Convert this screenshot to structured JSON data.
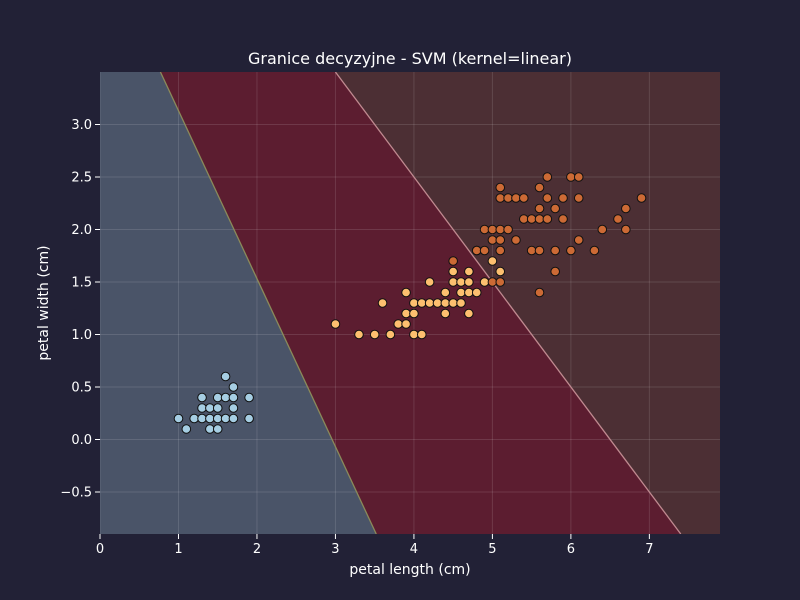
{
  "chart_data": {
    "type": "scatter",
    "title": "Granice decyzyjne - SVM (kernel=linear)",
    "xlabel": "petal length (cm)",
    "ylabel": "petal width (cm)",
    "xlim": [
      0,
      7.9
    ],
    "ylim": [
      -0.9,
      3.5
    ],
    "xticks": [
      0,
      1,
      2,
      3,
      4,
      5,
      6,
      7
    ],
    "xtick_labels": [
      "0",
      "1",
      "2",
      "3",
      "4",
      "5",
      "6",
      "7"
    ],
    "yticks": [
      -0.5,
      0.0,
      0.5,
      1.0,
      1.5,
      2.0,
      2.5,
      3.0
    ],
    "ytick_labels": [
      "−0.5",
      "0.0",
      "0.5",
      "1.0",
      "1.5",
      "2.0",
      "2.5",
      "3.0"
    ],
    "grid": true,
    "regions": [
      {
        "class": 0,
        "color": "#4a5468"
      },
      {
        "class": 1,
        "color": "#5c1d30"
      },
      {
        "class": 2,
        "color": "#4c2f34"
      }
    ],
    "boundaries": [
      {
        "between": [
          0,
          1
        ],
        "points": [
          [
            0.77,
            3.5
          ],
          [
            3.52,
            -0.9
          ]
        ],
        "color": "#8a8a5a"
      },
      {
        "between": [
          1,
          2
        ],
        "points": [
          [
            3.0,
            3.5
          ],
          [
            7.4,
            -0.9
          ]
        ],
        "color": "#c08a90"
      }
    ],
    "series": [
      {
        "color": "#a6cee3",
        "points": [
          [
            1.0,
            0.2
          ],
          [
            1.1,
            0.1
          ],
          [
            1.2,
            0.2
          ],
          [
            1.3,
            0.2
          ],
          [
            1.3,
            0.3
          ],
          [
            1.3,
            0.4
          ],
          [
            1.4,
            0.1
          ],
          [
            1.4,
            0.2
          ],
          [
            1.4,
            0.3
          ],
          [
            1.5,
            0.1
          ],
          [
            1.5,
            0.2
          ],
          [
            1.5,
            0.3
          ],
          [
            1.5,
            0.4
          ],
          [
            1.6,
            0.2
          ],
          [
            1.6,
            0.4
          ],
          [
            1.6,
            0.6
          ],
          [
            1.7,
            0.2
          ],
          [
            1.7,
            0.3
          ],
          [
            1.7,
            0.4
          ],
          [
            1.7,
            0.5
          ],
          [
            1.9,
            0.2
          ],
          [
            1.9,
            0.4
          ]
        ]
      },
      {
        "color": "#fdbf6f",
        "points": [
          [
            3.0,
            1.1
          ],
          [
            3.3,
            1.0
          ],
          [
            3.5,
            1.0
          ],
          [
            3.6,
            1.3
          ],
          [
            3.7,
            1.0
          ],
          [
            3.8,
            1.1
          ],
          [
            3.9,
            1.1
          ],
          [
            3.9,
            1.2
          ],
          [
            3.9,
            1.4
          ],
          [
            4.0,
            1.0
          ],
          [
            4.0,
            1.2
          ],
          [
            4.0,
            1.3
          ],
          [
            4.1,
            1.0
          ],
          [
            4.1,
            1.3
          ],
          [
            4.2,
            1.3
          ],
          [
            4.2,
            1.5
          ],
          [
            4.3,
            1.3
          ],
          [
            4.4,
            1.2
          ],
          [
            4.4,
            1.3
          ],
          [
            4.4,
            1.4
          ],
          [
            4.5,
            1.3
          ],
          [
            4.5,
            1.5
          ],
          [
            4.5,
            1.6
          ],
          [
            4.6,
            1.3
          ],
          [
            4.6,
            1.4
          ],
          [
            4.6,
            1.5
          ],
          [
            4.7,
            1.2
          ],
          [
            4.7,
            1.4
          ],
          [
            4.7,
            1.5
          ],
          [
            4.7,
            1.6
          ],
          [
            4.8,
            1.4
          ],
          [
            4.8,
            1.8
          ],
          [
            4.9,
            1.5
          ],
          [
            5.0,
            1.7
          ],
          [
            5.1,
            1.6
          ]
        ]
      },
      {
        "color": "#cc6a35",
        "points": [
          [
            4.5,
            1.7
          ],
          [
            4.8,
            1.8
          ],
          [
            4.9,
            1.8
          ],
          [
            4.9,
            2.0
          ],
          [
            5.0,
            1.5
          ],
          [
            5.0,
            1.9
          ],
          [
            5.0,
            2.0
          ],
          [
            5.1,
            1.5
          ],
          [
            5.1,
            1.8
          ],
          [
            5.1,
            1.9
          ],
          [
            5.1,
            2.0
          ],
          [
            5.1,
            2.3
          ],
          [
            5.1,
            2.4
          ],
          [
            5.2,
            2.0
          ],
          [
            5.2,
            2.3
          ],
          [
            5.3,
            1.9
          ],
          [
            5.3,
            2.3
          ],
          [
            5.4,
            2.1
          ],
          [
            5.4,
            2.3
          ],
          [
            5.5,
            1.8
          ],
          [
            5.5,
            2.1
          ],
          [
            5.6,
            1.4
          ],
          [
            5.6,
            1.8
          ],
          [
            5.6,
            2.1
          ],
          [
            5.6,
            2.2
          ],
          [
            5.6,
            2.4
          ],
          [
            5.7,
            2.1
          ],
          [
            5.7,
            2.3
          ],
          [
            5.7,
            2.5
          ],
          [
            5.8,
            1.6
          ],
          [
            5.8,
            1.8
          ],
          [
            5.8,
            2.2
          ],
          [
            5.9,
            2.1
          ],
          [
            5.9,
            2.3
          ],
          [
            6.0,
            1.8
          ],
          [
            6.0,
            2.5
          ],
          [
            6.1,
            1.9
          ],
          [
            6.1,
            2.3
          ],
          [
            6.1,
            2.5
          ],
          [
            6.3,
            1.8
          ],
          [
            6.4,
            2.0
          ],
          [
            6.6,
            2.1
          ],
          [
            6.7,
            2.0
          ],
          [
            6.7,
            2.2
          ],
          [
            6.9,
            2.3
          ]
        ]
      }
    ]
  }
}
